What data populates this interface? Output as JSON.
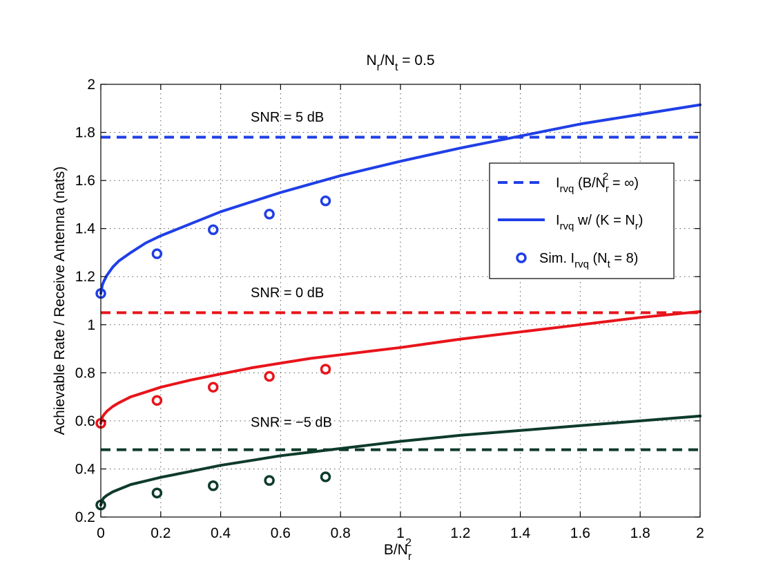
{
  "chart_data": {
    "type": "line",
    "title": {
      "main": "N",
      "sub1": "r",
      "mid": "/N",
      "sub2": "t",
      "tail": " = 0.5"
    },
    "xlabel": {
      "main": "B/N",
      "sub": "r",
      "sup": "2"
    },
    "ylabel": "Achievable Rate / Receive Antenna (nats)",
    "xlim": [
      0,
      2
    ],
    "ylim": [
      0.2,
      2
    ],
    "xticks": [
      0,
      0.2,
      0.4,
      0.6,
      0.8,
      1,
      1.2,
      1.4,
      1.6,
      1.8,
      2
    ],
    "xtick_labels": [
      "0",
      "0.2",
      "0.4",
      "0.6",
      "0.8",
      "1",
      "1.2",
      "1.4",
      "1.6",
      "1.8",
      "2"
    ],
    "yticks": [
      0.2,
      0.4,
      0.6,
      0.8,
      1,
      1.2,
      1.4,
      1.6,
      1.8,
      2
    ],
    "ytick_labels": [
      "0.2",
      "0.4",
      "0.6",
      "0.8",
      "1",
      "1.2",
      "1.4",
      "1.6",
      "1.8",
      "2"
    ],
    "grid": true,
    "legend_position": "upper-right",
    "legend": [
      {
        "style": "dashed",
        "main": "I",
        "sub": "rvq",
        "pre": " (B/N",
        "sub2": "r",
        "sup": "2",
        "post": " = ∞)"
      },
      {
        "style": "solid",
        "main": "I",
        "sub": "rvq",
        "pre": " w/ (K = N",
        "sub2": "r",
        "sup": "",
        "post": ")"
      },
      {
        "style": "marker",
        "main": "Sim. I",
        "sub": "rvq",
        "pre": " (N",
        "sub2": "t",
        "sup": "",
        "post": " = 8)"
      }
    ],
    "series": [
      {
        "snr_label": "SNR = 5 dB",
        "color": "#1f3fe6",
        "asymptote": 1.78,
        "curve": {
          "x": [
            0,
            0.005,
            0.01,
            0.02,
            0.04,
            0.06,
            0.1,
            0.15,
            0.2,
            0.3,
            0.4,
            0.5,
            0.6,
            0.7,
            0.8,
            0.9,
            1.0,
            1.2,
            1.4,
            1.6,
            1.8,
            2.0
          ],
          "y": [
            1.13,
            1.165,
            1.18,
            1.205,
            1.24,
            1.265,
            1.3,
            1.34,
            1.37,
            1.42,
            1.47,
            1.51,
            1.55,
            1.585,
            1.62,
            1.65,
            1.68,
            1.735,
            1.785,
            1.835,
            1.875,
            1.915
          ]
        },
        "sim": {
          "x": [
            0,
            0.1875,
            0.375,
            0.5625,
            0.75
          ],
          "y": [
            1.13,
            1.295,
            1.395,
            1.46,
            1.515
          ]
        },
        "annot_pos": [
          0.56,
          1.845
        ]
      },
      {
        "snr_label": "SNR = 0 dB",
        "color": "#e8141b",
        "asymptote": 1.05,
        "curve": {
          "x": [
            0,
            0.005,
            0.01,
            0.02,
            0.04,
            0.06,
            0.1,
            0.15,
            0.2,
            0.3,
            0.4,
            0.5,
            0.6,
            0.7,
            0.8,
            0.9,
            1.0,
            1.2,
            1.4,
            1.6,
            1.8,
            2.0
          ],
          "y": [
            0.59,
            0.615,
            0.625,
            0.64,
            0.66,
            0.675,
            0.7,
            0.72,
            0.74,
            0.77,
            0.795,
            0.82,
            0.84,
            0.86,
            0.875,
            0.89,
            0.905,
            0.94,
            0.97,
            1.0,
            1.03,
            1.055
          ]
        },
        "sim": {
          "x": [
            0,
            0.1875,
            0.375,
            0.5625,
            0.75
          ],
          "y": [
            0.59,
            0.685,
            0.74,
            0.785,
            0.815
          ]
        },
        "annot_pos": [
          0.56,
          1.115
        ]
      },
      {
        "snr_label": "SNR = −5 dB",
        "color": "#0e3b2a",
        "asymptote": 0.48,
        "curve": {
          "x": [
            0,
            0.005,
            0.01,
            0.02,
            0.04,
            0.06,
            0.1,
            0.15,
            0.2,
            0.3,
            0.4,
            0.5,
            0.6,
            0.7,
            0.8,
            0.9,
            1.0,
            1.2,
            1.4,
            1.6,
            1.8,
            2.0
          ],
          "y": [
            0.25,
            0.27,
            0.28,
            0.29,
            0.305,
            0.315,
            0.335,
            0.35,
            0.365,
            0.39,
            0.415,
            0.435,
            0.455,
            0.47,
            0.485,
            0.5,
            0.515,
            0.54,
            0.56,
            0.58,
            0.6,
            0.62
          ]
        },
        "sim": {
          "x": [
            0,
            0.1875,
            0.375,
            0.5625,
            0.75
          ],
          "y": [
            0.25,
            0.3,
            0.33,
            0.352,
            0.367
          ]
        },
        "annot_pos": [
          0.56,
          0.575
        ]
      }
    ]
  }
}
